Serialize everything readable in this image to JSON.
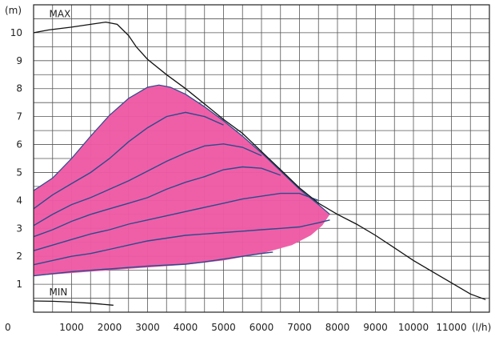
{
  "chart_data": {
    "type": "line",
    "title": "",
    "xlabel": "",
    "ylabel": "",
    "x_unit": "(l/h)",
    "y_unit": "(m)",
    "xlim": [
      0,
      12000
    ],
    "ylim": [
      0,
      11
    ],
    "x_ticks": [
      0,
      1000,
      2000,
      3000,
      4000,
      5000,
      6000,
      7000,
      8000,
      9000,
      10000,
      11000
    ],
    "x_tick_labels": [
      "0",
      "1000",
      "2000",
      "3000",
      "4000",
      "5000",
      "6000",
      "7000",
      "8000",
      "9000",
      "10000",
      "11000"
    ],
    "y_ticks": [
      1,
      2,
      3,
      4,
      5,
      6,
      7,
      8,
      9,
      10
    ],
    "y_tick_labels": [
      "1",
      "2",
      "3",
      "4",
      "5",
      "6",
      "7",
      "8",
      "9",
      "10"
    ],
    "grid": true,
    "minor_x_step": 500,
    "fill_color": "#ee5aa5",
    "curve_color": "#2a4b8c",
    "line_color": "#111111",
    "annotations": [
      {
        "text": "MAX",
        "x": 200,
        "y": 10.55
      },
      {
        "text": "MIN",
        "x": 200,
        "y": 0.6
      }
    ],
    "max_curve": [
      [
        0,
        10.0
      ],
      [
        400,
        10.1
      ],
      [
        1000,
        10.2
      ],
      [
        1500,
        10.3
      ],
      [
        1900,
        10.38
      ],
      [
        2200,
        10.3
      ],
      [
        2500,
        9.9
      ],
      [
        2700,
        9.5
      ],
      [
        3000,
        9.05
      ],
      [
        3500,
        8.5
      ],
      [
        4000,
        8.0
      ],
      [
        4500,
        7.45
      ],
      [
        5000,
        6.9
      ],
      [
        5500,
        6.4
      ],
      [
        6000,
        5.75
      ],
      [
        6500,
        5.1
      ],
      [
        7000,
        4.45
      ],
      [
        7500,
        3.9
      ],
      [
        8000,
        3.5
      ],
      [
        8500,
        3.15
      ],
      [
        9000,
        2.75
      ],
      [
        9500,
        2.3
      ],
      [
        10000,
        1.85
      ],
      [
        10500,
        1.45
      ],
      [
        11000,
        1.05
      ],
      [
        11500,
        0.65
      ],
      [
        11900,
        0.45
      ]
    ],
    "min_curve": [
      [
        0,
        0.4
      ],
      [
        500,
        0.39
      ],
      [
        1000,
        0.36
      ],
      [
        1500,
        0.32
      ],
      [
        2100,
        0.25
      ]
    ],
    "envelope": [
      [
        0,
        4.35
      ],
      [
        500,
        4.8
      ],
      [
        1000,
        5.5
      ],
      [
        1500,
        6.3
      ],
      [
        2000,
        7.05
      ],
      [
        2500,
        7.65
      ],
      [
        3000,
        8.05
      ],
      [
        3300,
        8.13
      ],
      [
        3600,
        8.05
      ],
      [
        4000,
        7.8
      ],
      [
        4500,
        7.35
      ],
      [
        5000,
        6.85
      ],
      [
        5500,
        6.3
      ],
      [
        6000,
        5.7
      ],
      [
        6500,
        5.05
      ],
      [
        7000,
        4.4
      ],
      [
        7500,
        3.85
      ],
      [
        7800,
        3.5
      ],
      [
        7600,
        3.1
      ],
      [
        7300,
        2.75
      ],
      [
        6800,
        2.4
      ],
      [
        6000,
        2.1
      ],
      [
        5000,
        1.85
      ],
      [
        4000,
        1.7
      ],
      [
        3000,
        1.6
      ],
      [
        2000,
        1.5
      ],
      [
        1000,
        1.4
      ],
      [
        0,
        1.3
      ]
    ],
    "series": [
      {
        "values": [
          [
            0,
            3.7
          ],
          [
            500,
            4.2
          ],
          [
            1000,
            4.6
          ],
          [
            1500,
            5.0
          ],
          [
            2000,
            5.5
          ],
          [
            2500,
            6.1
          ],
          [
            3000,
            6.6
          ],
          [
            3500,
            7.0
          ],
          [
            4000,
            7.15
          ],
          [
            4500,
            7.0
          ],
          [
            5000,
            6.7
          ]
        ]
      },
      {
        "values": [
          [
            0,
            3.1
          ],
          [
            500,
            3.5
          ],
          [
            1000,
            3.85
          ],
          [
            1500,
            4.1
          ],
          [
            2000,
            4.4
          ],
          [
            2500,
            4.7
          ],
          [
            3000,
            5.05
          ],
          [
            3500,
            5.4
          ],
          [
            4000,
            5.7
          ],
          [
            4500,
            5.95
          ],
          [
            5000,
            6.02
          ],
          [
            5500,
            5.9
          ],
          [
            6000,
            5.6
          ]
        ]
      },
      {
        "values": [
          [
            0,
            2.7
          ],
          [
            500,
            2.95
          ],
          [
            1000,
            3.25
          ],
          [
            1500,
            3.5
          ],
          [
            2000,
            3.7
          ],
          [
            2500,
            3.9
          ],
          [
            3000,
            4.1
          ],
          [
            3500,
            4.4
          ],
          [
            4000,
            4.65
          ],
          [
            4500,
            4.85
          ],
          [
            5000,
            5.1
          ],
          [
            5500,
            5.2
          ],
          [
            6000,
            5.15
          ],
          [
            6500,
            4.9
          ]
        ]
      },
      {
        "values": [
          [
            0,
            2.2
          ],
          [
            500,
            2.4
          ],
          [
            1000,
            2.6
          ],
          [
            1500,
            2.8
          ],
          [
            2000,
            2.95
          ],
          [
            2500,
            3.15
          ],
          [
            3000,
            3.3
          ],
          [
            3500,
            3.45
          ],
          [
            4000,
            3.6
          ],
          [
            4500,
            3.75
          ],
          [
            5000,
            3.9
          ],
          [
            5500,
            4.05
          ],
          [
            6000,
            4.15
          ],
          [
            6500,
            4.25
          ],
          [
            7000,
            4.25
          ],
          [
            7500,
            4.0
          ]
        ]
      },
      {
        "values": [
          [
            0,
            1.7
          ],
          [
            500,
            1.85
          ],
          [
            1000,
            2.0
          ],
          [
            1500,
            2.1
          ],
          [
            2000,
            2.25
          ],
          [
            2500,
            2.4
          ],
          [
            3000,
            2.55
          ],
          [
            3500,
            2.65
          ],
          [
            4000,
            2.75
          ],
          [
            4500,
            2.8
          ],
          [
            5000,
            2.85
          ],
          [
            5500,
            2.9
          ],
          [
            6000,
            2.95
          ],
          [
            6500,
            3.0
          ],
          [
            7000,
            3.05
          ],
          [
            7500,
            3.2
          ],
          [
            7800,
            3.3
          ]
        ]
      },
      {
        "values": [
          [
            0,
            1.3
          ],
          [
            1000,
            1.45
          ],
          [
            2000,
            1.55
          ],
          [
            3000,
            1.65
          ],
          [
            4000,
            1.72
          ],
          [
            4500,
            1.8
          ],
          [
            5000,
            1.9
          ],
          [
            5500,
            2.0
          ],
          [
            6000,
            2.1
          ],
          [
            6300,
            2.15
          ]
        ]
      }
    ]
  }
}
